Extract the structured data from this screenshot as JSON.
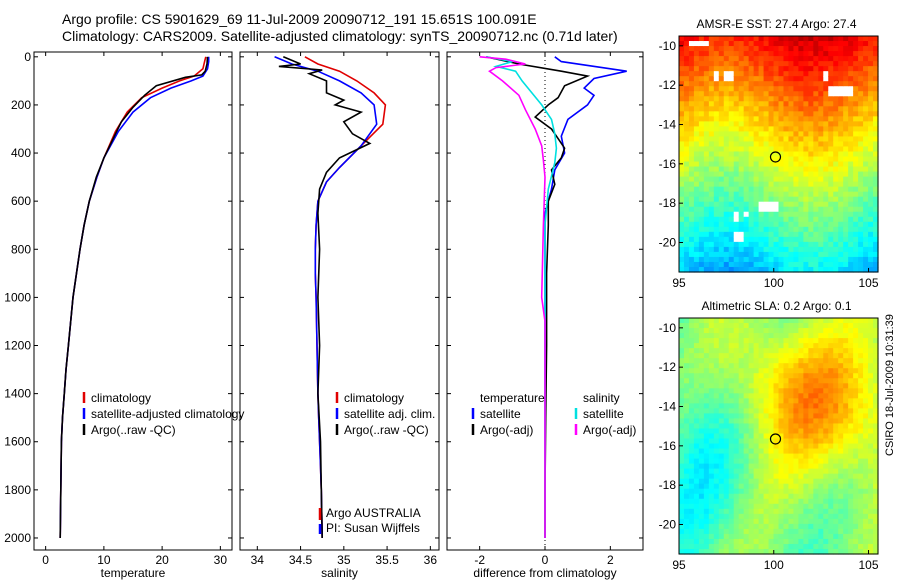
{
  "header": {
    "title_line1": "Argo profile: CS 5901629_69 11-Jul-2009 20090712_191 15.651S 100.091E",
    "title_line2": "Climatology: CARS2009. Satellite-adjusted climatology: synTS_20090712.nc (0.71d later)"
  },
  "credit": "CSIRO 18-Jul-2009 10:31:39",
  "colors": {
    "red": "#e00000",
    "blue": "#0000ff",
    "black": "#000000",
    "cyan": "#00e0e0",
    "magenta": "#ff00ff"
  },
  "chart_data": [
    {
      "type": "line",
      "name": "temperature-profile",
      "xlabel": "temperature",
      "ylabel": "",
      "xlim": [
        -2,
        32
      ],
      "ylim": [
        2050,
        -20
      ],
      "xticks": [
        0,
        10,
        20,
        30
      ],
      "yticks": [
        0,
        200,
        400,
        600,
        800,
        1000,
        1200,
        1400,
        1600,
        1800,
        2000
      ],
      "legend_position": "bottom-center",
      "series": [
        {
          "name": "climatology",
          "color": "red",
          "x": [
            27.5,
            27.3,
            27.0,
            25.5,
            23.0,
            20.0,
            16.5,
            14.0,
            12.0,
            10.0,
            8.8,
            7.5,
            6.6,
            5.9,
            5.3,
            4.7,
            4.3,
            3.9,
            3.5,
            3.2,
            2.9,
            2.7,
            2.6,
            2.5
          ],
          "y": [
            0,
            20,
            50,
            80,
            100,
            130,
            170,
            230,
            310,
            420,
            500,
            600,
            700,
            800,
            900,
            1000,
            1100,
            1200,
            1300,
            1400,
            1500,
            1600,
            1800,
            2000
          ]
        },
        {
          "name": "satellite-adjusted climatology",
          "color": "blue",
          "x": [
            28.0,
            28.0,
            27.8,
            27.0,
            25.0,
            21.5,
            18.0,
            15.0,
            12.5,
            10.0,
            8.8,
            7.5,
            6.6,
            5.9,
            5.3,
            4.7,
            4.3,
            3.9,
            3.5,
            3.2,
            2.9,
            2.7,
            2.6,
            2.5
          ],
          "y": [
            0,
            20,
            50,
            80,
            100,
            130,
            170,
            230,
            310,
            420,
            500,
            600,
            700,
            800,
            900,
            1000,
            1100,
            1200,
            1300,
            1400,
            1500,
            1600,
            1800,
            2000
          ]
        },
        {
          "name": "Argo(..raw -QC)",
          "color": "black",
          "x": [
            27.8,
            27.7,
            27.4,
            26.8,
            24.0,
            19.0,
            17.0,
            15.0,
            13.0,
            12.0,
            10.0,
            8.7,
            7.5,
            6.6,
            5.9,
            5.3,
            4.7,
            4.3,
            3.9,
            3.5,
            3.2,
            2.9,
            2.7,
            2.6,
            2.5
          ],
          "y": [
            0,
            30,
            60,
            75,
            85,
            120,
            160,
            210,
            270,
            320,
            420,
            500,
            600,
            700,
            800,
            900,
            1000,
            1100,
            1200,
            1300,
            1400,
            1500,
            1600,
            1800,
            2000
          ]
        }
      ]
    },
    {
      "type": "line",
      "name": "salinity-profile",
      "xlabel": "salinity",
      "xlim": [
        33.8,
        36.1
      ],
      "ylim": [
        2050,
        -20
      ],
      "xticks": [
        34,
        34.5,
        35,
        35.5,
        36
      ],
      "legend_position": "bottom-center",
      "annotation": [
        "Argo AUSTRALIA",
        "PI: Susan Wijffels"
      ],
      "series": [
        {
          "name": "climatology",
          "color": "red",
          "x": [
            34.55,
            34.7,
            34.95,
            35.15,
            35.35,
            35.48,
            35.45,
            35.2,
            34.95,
            34.8,
            34.7,
            34.68,
            34.67,
            34.67,
            34.68,
            34.69,
            34.7,
            34.71,
            34.72,
            34.73,
            34.74,
            34.75
          ],
          "y": [
            0,
            30,
            60,
            100,
            150,
            200,
            280,
            370,
            460,
            520,
            600,
            700,
            800,
            900,
            1000,
            1200,
            1400,
            1500,
            1600,
            1700,
            1800,
            2000
          ]
        },
        {
          "name": "satellite adj. clim.",
          "color": "blue",
          "x": [
            34.2,
            34.4,
            34.7,
            34.95,
            35.2,
            35.35,
            35.38,
            35.2,
            34.95,
            34.8,
            34.7,
            34.68,
            34.67,
            34.67,
            34.68,
            34.69,
            34.7,
            34.71,
            34.72,
            34.73,
            34.74,
            34.75
          ],
          "y": [
            0,
            30,
            60,
            100,
            150,
            200,
            280,
            370,
            460,
            520,
            600,
            700,
            800,
            900,
            1000,
            1200,
            1400,
            1500,
            1600,
            1700,
            1800,
            2000
          ]
        },
        {
          "name": "Argo(..raw -QC)",
          "color": "black",
          "x": [
            34.3,
            34.5,
            34.25,
            34.75,
            34.6,
            34.8,
            34.8,
            35.0,
            34.9,
            35.2,
            35.0,
            35.1,
            35.3,
            34.95,
            34.8,
            34.72,
            34.7,
            34.72,
            34.7,
            34.72,
            34.7,
            34.73,
            34.74,
            34.75
          ],
          "y": [
            0,
            30,
            40,
            55,
            70,
            100,
            150,
            180,
            200,
            230,
            270,
            320,
            360,
            420,
            480,
            550,
            650,
            800,
            1000,
            1200,
            1400,
            1600,
            1800,
            2000
          ]
        }
      ]
    },
    {
      "type": "line",
      "name": "difference-profile",
      "xlabel": "difference from climatology",
      "xlim": [
        -3.0,
        3.0
      ],
      "ylim": [
        2050,
        -20
      ],
      "xticks": [
        -2,
        0,
        2
      ],
      "reference_line_x": 0,
      "legend_position": "bottom",
      "legend_groups": [
        "temperature",
        "salinity"
      ],
      "series": [
        {
          "name": "satellite",
          "group": "temperature",
          "color": "blue",
          "x": [
            0.3,
            0.5,
            2.5,
            1.5,
            1.2,
            1.5,
            1.3,
            0.7,
            0.5,
            0.6,
            0.3,
            0.2,
            0,
            0,
            0,
            0,
            0,
            0,
            0,
            0
          ],
          "y": [
            0,
            20,
            60,
            90,
            130,
            160,
            200,
            260,
            330,
            400,
            470,
            550,
            650,
            800,
            1000,
            1200,
            1400,
            1600,
            1800,
            2000
          ]
        },
        {
          "name": "Argo(-adj)",
          "group": "temperature",
          "color": "black",
          "x": [
            -1.8,
            -0.8,
            0.5,
            1.3,
            0.6,
            0.4,
            0.1,
            -0.3,
            0.2,
            0.4,
            0.6,
            0.5,
            0.2,
            0.3,
            0.1,
            0.1,
            0.05,
            0.05,
            0.02,
            0,
            0
          ],
          "y": [
            0,
            30,
            60,
            80,
            120,
            170,
            200,
            250,
            300,
            340,
            380,
            420,
            470,
            530,
            600,
            700,
            900,
            1200,
            1500,
            1800,
            2000
          ]
        },
        {
          "name": "satellite",
          "group": "salinity",
          "color": "cyan",
          "x": [
            -1.8,
            -1.0,
            -1.5,
            -0.9,
            -0.7,
            -0.4,
            -0.1,
            0.2,
            0.3,
            0.35,
            0.3,
            0.1,
            0,
            0,
            0,
            0,
            0,
            0
          ],
          "y": [
            0,
            20,
            40,
            60,
            100,
            150,
            200,
            260,
            320,
            380,
            440,
            550,
            700,
            900,
            1200,
            1500,
            1800,
            2000
          ]
        },
        {
          "name": "Argo(-adj)",
          "group": "salinity",
          "color": "magenta",
          "x": [
            -2.0,
            -1.2,
            -0.6,
            -1.5,
            -1.7,
            -1.3,
            -0.8,
            -0.6,
            -0.3,
            -0.1,
            -0.05,
            0,
            -0.05,
            -0.1,
            0,
            0,
            0,
            0,
            0
          ],
          "y": [
            0,
            10,
            30,
            45,
            60,
            100,
            160,
            220,
            300,
            370,
            430,
            500,
            700,
            1000,
            1100,
            1300,
            1500,
            1800,
            2000
          ]
        }
      ]
    },
    {
      "type": "heatmap",
      "name": "sst-map",
      "title": "AMSR-E SST: 27.4 Argo: 27.4",
      "xlim": [
        95,
        105.5
      ],
      "ylim": [
        -21.5,
        -9.5
      ],
      "xticks": [
        95,
        100,
        105
      ],
      "yticks": [
        -10,
        -12,
        -14,
        -16,
        -18,
        -20
      ],
      "marker": {
        "lon": 100.091,
        "lat": -15.651
      },
      "colormap": "jet"
    },
    {
      "type": "heatmap",
      "name": "sla-map",
      "title": "Altimetric SLA: 0.2 Argo: 0.1",
      "xlim": [
        95,
        105.5
      ],
      "ylim": [
        -21.5,
        -9.5
      ],
      "xticks": [
        95,
        100,
        105
      ],
      "yticks": [
        -10,
        -12,
        -14,
        -16,
        -18,
        -20
      ],
      "marker": {
        "lon": 100.091,
        "lat": -15.651
      },
      "colormap": "jet"
    }
  ],
  "legends": {
    "temperature": [
      "climatology",
      "satellite-adjusted climatology",
      "Argo(..raw -QC)"
    ],
    "salinity": [
      "climatology",
      "satellite adj. clim.",
      "Argo(..raw -QC)"
    ],
    "difference_group_titles": [
      "temperature",
      "salinity"
    ],
    "difference_left": [
      "satellite",
      "Argo(-adj)"
    ],
    "difference_right": [
      "satellite",
      "Argo(-adj)"
    ]
  }
}
